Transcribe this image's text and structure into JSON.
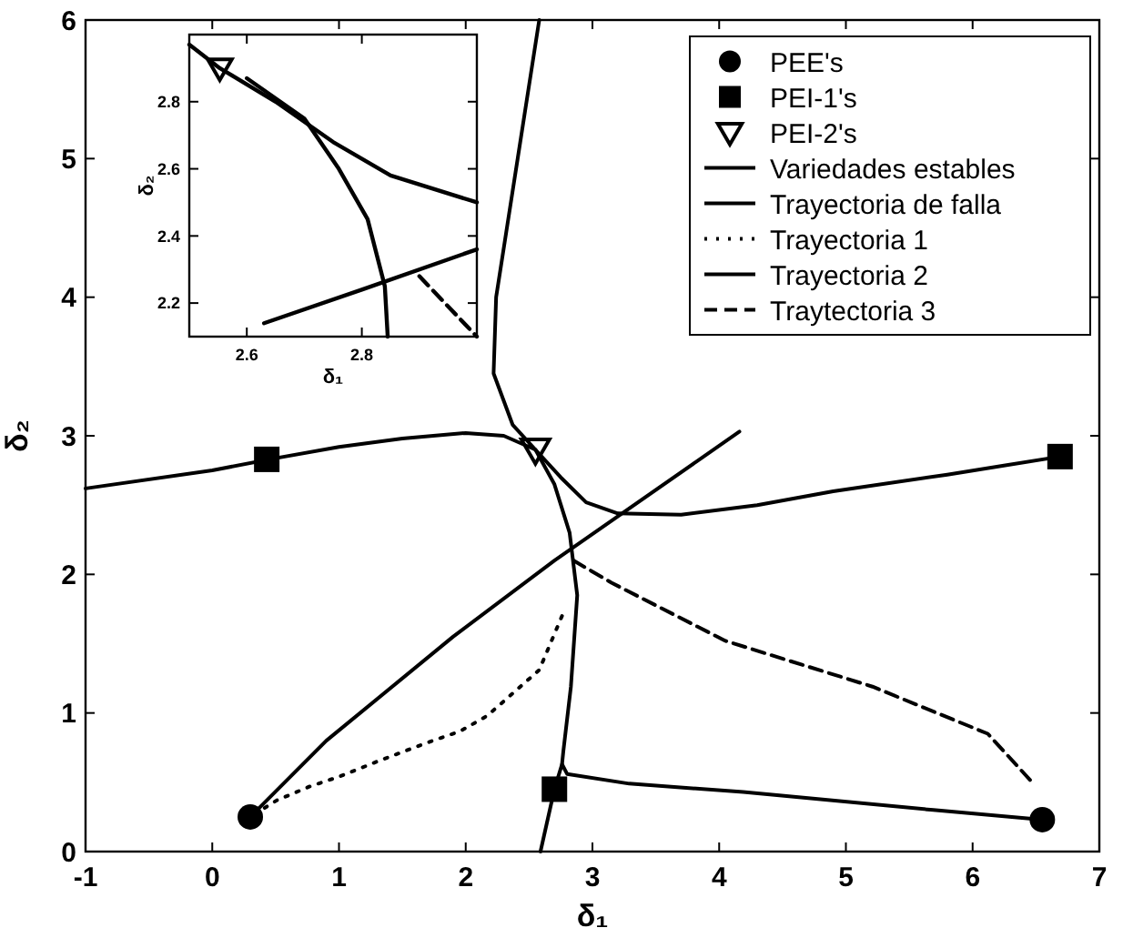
{
  "chart_data": [
    {
      "type": "line",
      "xlabel": "δ₁",
      "ylabel": "δ₂",
      "xlim": [
        -1,
        7
      ],
      "ylim": [
        0,
        6
      ],
      "xticks": [
        -1,
        0,
        1,
        2,
        3,
        4,
        5,
        6,
        7
      ],
      "yticks": [
        0,
        1,
        2,
        3,
        4,
        5,
        6
      ],
      "legend": "top right",
      "series": [
        {
          "name": "PEE's",
          "type": "scatter",
          "marker": "circle",
          "color": "#000000",
          "x": [
            0.3,
            6.55
          ],
          "values": [
            0.25,
            0.23
          ]
        },
        {
          "name": "PEI-1's",
          "type": "scatter",
          "marker": "square",
          "color": "#000000",
          "x": [
            0.43,
            6.69,
            2.7
          ],
          "values": [
            2.83,
            2.85,
            0.45
          ]
        },
        {
          "name": "PEI-2's",
          "type": "scatter",
          "marker": "triangle",
          "color": "#000000",
          "x": [
            2.55
          ],
          "values": [
            2.9
          ]
        },
        {
          "name": "Variedades estables",
          "line_style": "solid",
          "color": "#000000",
          "x": [
            -1,
            0,
            0.45,
            1,
            1.5,
            2,
            2.3,
            2.55,
            2.75,
            2.95,
            3.2,
            3.7,
            4.3,
            4.9,
            5.8,
            6.69,
            null,
            2.58,
            2.41,
            2.24,
            2.22,
            2.37,
            2.55,
            null,
            2.59,
            2.7,
            2.76
          ],
          "values": [
            2.62,
            2.75,
            2.83,
            2.92,
            2.98,
            3.02,
            3.0,
            2.9,
            2.7,
            2.52,
            2.44,
            2.43,
            2.5,
            2.6,
            2.72,
            2.85,
            null,
            6,
            5,
            4,
            3.45,
            3.08,
            2.9,
            null,
            0,
            0.45,
            0.63
          ]
        },
        {
          "name": "Trayectoria de falla",
          "line_style": "solid",
          "color": "#000000",
          "x": [
            0.3,
            0.9,
            1.9,
            2.7,
            4.16
          ],
          "values": [
            0.25,
            0.8,
            1.55,
            2.1,
            3.03
          ]
        },
        {
          "name": "Trayectoria 1",
          "line_style": "dotted",
          "color": "#000000",
          "x": [
            2.76,
            2.58,
            2.17,
            1.96,
            1.71,
            1.33,
            1.0,
            0.77,
            0.51,
            0.3
          ],
          "values": [
            1.7,
            1.31,
            0.98,
            0.87,
            0.79,
            0.66,
            0.54,
            0.47,
            0.37,
            0.25
          ]
        },
        {
          "name": "Trayectoria 2",
          "line_style": "solid",
          "color": "#000000",
          "x": [
            2.55,
            2.7,
            2.82,
            2.88,
            2.83,
            2.77,
            2.76,
            2.8,
            3.29,
            4.19,
            5.69,
            6.55
          ],
          "values": [
            2.9,
            2.65,
            2.3,
            1.85,
            1.19,
            0.72,
            0.63,
            0.56,
            0.49,
            0.43,
            0.3,
            0.23
          ]
        },
        {
          "name": "Traytectoria 3",
          "line_style": "dashed",
          "color": "#000000",
          "x": [
            2.85,
            3.15,
            4.05,
            5.21,
            6.12,
            6.47
          ],
          "values": [
            2.1,
            1.94,
            1.52,
            1.19,
            0.85,
            0.5
          ]
        }
      ]
    },
    {
      "type": "line",
      "xlabel": "δ₁",
      "ylabel": "δ₂",
      "xlim": [
        2.5,
        3.0
      ],
      "ylim": [
        2.1,
        3.0
      ],
      "xticks": [
        2.6,
        2.8
      ],
      "yticks": [
        2.2,
        2.4,
        2.6,
        2.8
      ],
      "series": [
        {
          "type": "scatter",
          "marker": "triangle",
          "color": "#000000",
          "x": [
            2.553
          ],
          "values": [
            2.9
          ]
        },
        {
          "line_style": "solid",
          "color": "#000000",
          "x": [
            2.5,
            2.553,
            2.65,
            2.75,
            2.85,
            3.0
          ],
          "values": [
            2.97,
            2.9,
            2.8,
            2.68,
            2.58,
            2.5
          ]
        },
        {
          "line_style": "solid",
          "color": "#000000",
          "x": [
            2.6,
            2.7,
            2.76,
            2.81,
            2.84,
            2.845
          ],
          "values": [
            2.87,
            2.75,
            2.6,
            2.45,
            2.25,
            2.1
          ]
        },
        {
          "line_style": "solid",
          "color": "#000000",
          "x": [
            2.63,
            2.8,
            3.0
          ],
          "values": [
            2.14,
            2.24,
            2.36
          ]
        },
        {
          "line_style": "dashed",
          "color": "#000000",
          "x": [
            2.9,
            3.0
          ],
          "values": [
            2.28,
            2.1
          ]
        }
      ]
    }
  ]
}
